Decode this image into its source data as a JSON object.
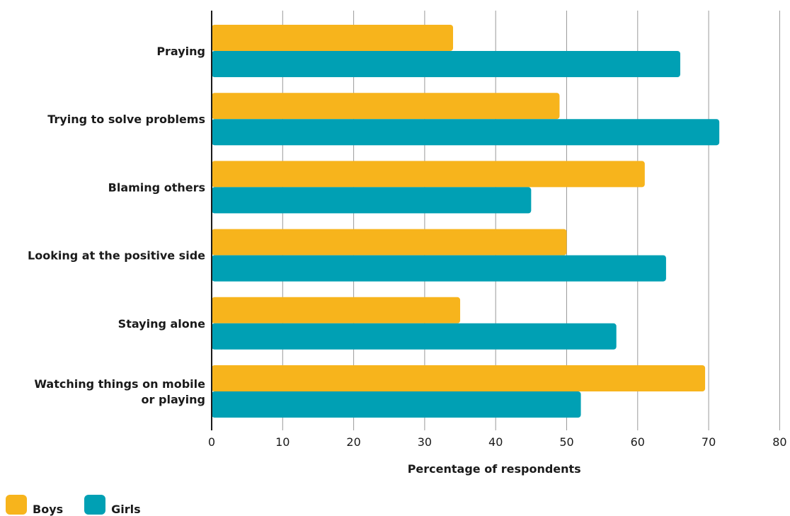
{
  "chart_data": {
    "type": "bar",
    "orientation": "horizontal",
    "categories": [
      "Praying",
      "Trying to solve problems",
      "Blaming others",
      "Looking at the positive side",
      "Staying alone",
      "Watching things on mobile or playing"
    ],
    "series": [
      {
        "name": "Boys",
        "color": "#f7b41c",
        "values": [
          34,
          49,
          61,
          50,
          35,
          69.5
        ]
      },
      {
        "name": "Girls",
        "color": "#00a0b4",
        "values": [
          66,
          71.5,
          45,
          64,
          57,
          52
        ]
      }
    ],
    "xlabel": "Percentage of respondents",
    "ylabel": "",
    "xlim": [
      0,
      80
    ],
    "xticks": [
      "0",
      "10",
      "20",
      "30",
      "40",
      "50",
      "60",
      "70",
      "80"
    ],
    "grid": true,
    "legend_position": "bottom-left"
  }
}
